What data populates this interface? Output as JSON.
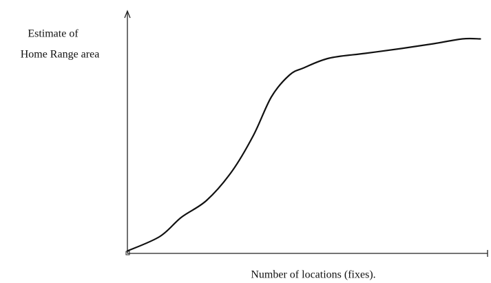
{
  "chart_data": {
    "type": "line",
    "ylabel": [
      "Estimate of",
      "Home Range area"
    ],
    "xlabel": "Number of locations (fixes).",
    "x": [
      0,
      9,
      15,
      22,
      29,
      35,
      40,
      45,
      49,
      56,
      66,
      76,
      85,
      93,
      98
    ],
    "values": [
      1,
      7,
      15,
      22,
      34,
      49,
      65,
      74,
      77,
      81,
      83,
      85,
      87,
      89,
      89
    ],
    "color": "#111111",
    "xlim": [
      0,
      100
    ],
    "ylim": [
      0,
      100
    ]
  }
}
